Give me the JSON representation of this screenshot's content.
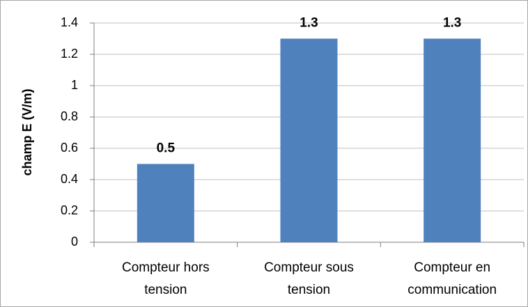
{
  "chart_data": {
    "type": "bar",
    "y_label": "champ E (V/m)",
    "categories": [
      "Compteur hors tension",
      "Compteur sous tension",
      "Compteur en communication"
    ],
    "values": [
      0.5,
      1.3,
      1.3
    ],
    "color": "#4f81bd",
    "ylim": [
      0,
      1.4
    ],
    "yticks": [
      0,
      0.2,
      0.4,
      0.6,
      0.8,
      1,
      1.2,
      1.4
    ],
    "grid": true
  }
}
